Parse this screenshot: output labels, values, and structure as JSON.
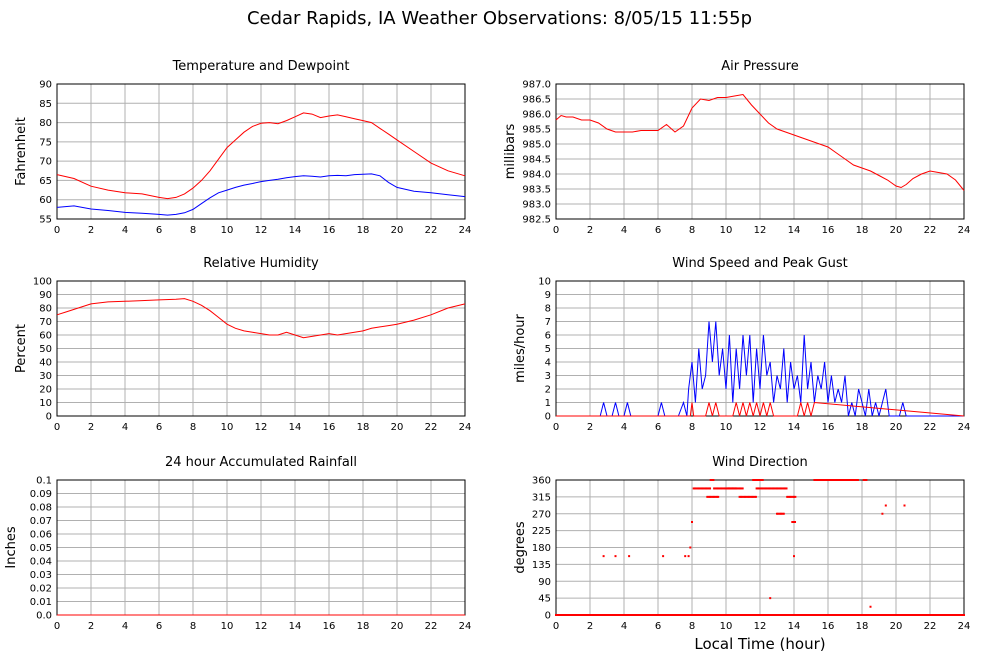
{
  "title": "Cedar Rapids, IA Weather Observations: 8/05/15 11:55p",
  "x_axis_label": "Local Time (hour)",
  "colors": {
    "red": "#ff0000",
    "blue": "#0000ff",
    "grid": "#b0b0b0",
    "zero": "#00b000"
  },
  "chart_data": [
    {
      "id": "temp",
      "type": "line",
      "title": "Temperature and Dewpoint",
      "ylabel": "Fahrenheit",
      "xlim": [
        0,
        24
      ],
      "ylim": [
        55,
        90
      ],
      "xticks": [
        0,
        2,
        4,
        6,
        8,
        10,
        12,
        14,
        16,
        18,
        20,
        22,
        24
      ],
      "yticks": [
        "55",
        "60",
        "65",
        "70",
        "75",
        "80",
        "85",
        "90"
      ],
      "series": [
        {
          "color": "#ff0000",
          "x": [
            0,
            1,
            2,
            3,
            4,
            5,
            6,
            6.5,
            7,
            7.5,
            8,
            8.5,
            9,
            9.5,
            10,
            10.5,
            11,
            11.5,
            12,
            12.5,
            13,
            13.5,
            14,
            14.5,
            15,
            15.5,
            16,
            16.5,
            17,
            17.5,
            18,
            18.5,
            19,
            19.5,
            20,
            21,
            22,
            23,
            24
          ],
          "y": [
            66.5,
            65.5,
            63.5,
            62.5,
            61.8,
            61.5,
            60.6,
            60.3,
            60.6,
            61.5,
            63,
            65,
            67.5,
            70.5,
            73.5,
            75.5,
            77.5,
            79,
            79.8,
            80,
            79.7,
            80.5,
            81.5,
            82.5,
            82.2,
            81.3,
            81.7,
            82,
            81.5,
            81,
            80.5,
            80,
            78.5,
            77,
            75.5,
            72.5,
            69.5,
            67.5,
            66.2
          ]
        },
        {
          "color": "#0000ff",
          "x": [
            0,
            1,
            2,
            3,
            4,
            5,
            6,
            6.5,
            7,
            7.5,
            8,
            8.5,
            9,
            9.5,
            10,
            10.5,
            11,
            11.5,
            12,
            12.5,
            13,
            13.5,
            14,
            14.5,
            15,
            15.5,
            16,
            16.5,
            17,
            17.5,
            18,
            18.5,
            19,
            19.5,
            20,
            21,
            22,
            23,
            24
          ],
          "y": [
            58,
            58.4,
            57.6,
            57.2,
            56.7,
            56.5,
            56.2,
            56,
            56.2,
            56.6,
            57.5,
            59,
            60.5,
            61.8,
            62.5,
            63.2,
            63.8,
            64.2,
            64.7,
            65,
            65.3,
            65.7,
            66,
            66.2,
            66.1,
            65.9,
            66.2,
            66.3,
            66.2,
            66.5,
            66.6,
            66.7,
            66.2,
            64.5,
            63.2,
            62.2,
            61.8,
            61.3,
            60.8
          ]
        }
      ]
    },
    {
      "id": "pressure",
      "type": "line",
      "title": "Air Pressure",
      "ylabel": "millibars",
      "xlim": [
        0,
        24
      ],
      "ylim": [
        982.5,
        987.0
      ],
      "xticks": [
        0,
        2,
        4,
        6,
        8,
        10,
        12,
        14,
        16,
        18,
        20,
        22,
        24
      ],
      "yticks": [
        "982.5",
        "983.0",
        "983.5",
        "984.0",
        "984.5",
        "985.0",
        "985.5",
        "986.0",
        "986.5",
        "987.0"
      ],
      "series": [
        {
          "color": "#ff0000",
          "x": [
            0,
            0.3,
            0.6,
            1,
            1.5,
            2,
            2.5,
            3,
            3.5,
            4,
            4.5,
            5,
            5.5,
            6,
            6.5,
            7,
            7.5,
            8,
            8.5,
            9,
            9.5,
            10,
            10.5,
            11,
            11.5,
            12,
            12.5,
            13,
            13.5,
            14,
            14.5,
            15,
            15.5,
            16,
            16.5,
            17,
            17.5,
            18,
            18.5,
            19,
            19.5,
            20,
            20.3,
            20.6,
            21,
            21.5,
            22,
            22.5,
            23,
            23.5,
            24
          ],
          "y": [
            985.8,
            985.95,
            985.9,
            985.9,
            985.8,
            985.8,
            985.7,
            985.5,
            985.4,
            985.4,
            985.4,
            985.45,
            985.45,
            985.45,
            985.65,
            985.4,
            985.6,
            986.2,
            986.5,
            986.45,
            986.55,
            986.55,
            986.6,
            986.65,
            986.3,
            986.0,
            985.7,
            985.5,
            985.4,
            985.3,
            985.2,
            985.1,
            985.0,
            984.9,
            984.7,
            984.5,
            984.3,
            984.2,
            984.1,
            983.95,
            983.8,
            983.6,
            983.55,
            983.65,
            983.85,
            984.0,
            984.1,
            984.05,
            984.0,
            983.8,
            983.45
          ]
        }
      ]
    },
    {
      "id": "humidity",
      "type": "line",
      "title": "Relative Humidity",
      "ylabel": "Percent",
      "xlim": [
        0,
        24
      ],
      "ylim": [
        0,
        100
      ],
      "xticks": [
        0,
        2,
        4,
        6,
        8,
        10,
        12,
        14,
        16,
        18,
        20,
        22,
        24
      ],
      "yticks": [
        "0",
        "10",
        "20",
        "30",
        "40",
        "50",
        "60",
        "70",
        "80",
        "90",
        "100"
      ],
      "series": [
        {
          "color": "#ff0000",
          "x": [
            0,
            0.5,
            1,
            1.5,
            2,
            3,
            4,
            5,
            6,
            7,
            7.5,
            8,
            8.5,
            9,
            9.5,
            10,
            10.5,
            11,
            11.5,
            12,
            12.5,
            13,
            13.5,
            14,
            14.5,
            15,
            15.5,
            16,
            16.5,
            17,
            17.5,
            18,
            18.5,
            19,
            19.5,
            20,
            21,
            22,
            23,
            24
          ],
          "y": [
            75,
            77,
            79,
            81,
            83,
            84.5,
            85,
            85.5,
            86,
            86.5,
            87,
            85,
            82,
            78,
            73,
            68,
            65,
            63,
            62,
            61,
            60,
            60,
            62,
            60,
            58,
            59,
            60,
            61,
            60,
            61,
            62,
            63,
            65,
            66,
            67,
            68,
            71,
            75,
            80,
            83
          ]
        }
      ]
    },
    {
      "id": "wind",
      "type": "line",
      "title": "Wind Speed and Peak Gust",
      "ylabel": "miles/hour",
      "xlim": [
        0,
        24
      ],
      "ylim": [
        0,
        10
      ],
      "xticks": [
        0,
        2,
        4,
        6,
        8,
        10,
        12,
        14,
        16,
        18,
        20,
        22,
        24
      ],
      "yticks": [
        "0",
        "1",
        "2",
        "3",
        "4",
        "5",
        "6",
        "7",
        "8",
        "9",
        "10"
      ],
      "series": [
        {
          "color": "#0000ff",
          "x": [
            0,
            2.6,
            2.8,
            3,
            3.3,
            3.5,
            3.7,
            4,
            4.2,
            4.4,
            6,
            6.2,
            6.4,
            7.2,
            7.5,
            7.7,
            7.8,
            8.0,
            8.2,
            8.4,
            8.6,
            8.8,
            9.0,
            9.2,
            9.4,
            9.6,
            9.8,
            10.0,
            10.2,
            10.4,
            10.6,
            10.8,
            11.0,
            11.2,
            11.4,
            11.6,
            11.8,
            12.0,
            12.2,
            12.4,
            12.6,
            12.8,
            13.0,
            13.2,
            13.4,
            13.6,
            13.8,
            14.0,
            14.2,
            14.4,
            14.6,
            14.8,
            15.0,
            15.2,
            15.4,
            15.6,
            15.8,
            16.0,
            16.2,
            16.4,
            16.6,
            16.8,
            17.0,
            17.2,
            17.4,
            17.6,
            17.8,
            18.0,
            18.2,
            18.4,
            18.6,
            18.8,
            19.0,
            19.2,
            19.4,
            19.6,
            20.2,
            20.4,
            20.6,
            24
          ],
          "y": [
            0,
            0,
            1,
            0,
            0,
            1,
            0,
            0,
            1,
            0,
            0,
            1,
            0,
            0,
            1,
            0,
            2,
            4,
            1,
            5,
            2,
            3,
            7,
            4,
            7,
            3,
            5,
            2,
            6,
            1,
            5,
            2,
            6,
            3,
            6,
            1,
            5,
            2,
            6,
            3,
            4,
            1,
            3,
            2,
            5,
            1,
            4,
            2,
            3,
            1,
            6,
            2,
            4,
            1,
            3,
            2,
            4,
            1,
            3,
            1,
            2,
            1,
            3,
            0,
            1,
            0,
            2,
            1,
            0,
            2,
            0,
            1,
            0,
            1,
            2,
            0,
            0,
            1,
            0,
            0
          ]
        },
        {
          "color": "#ff0000",
          "x": [
            0,
            7.9,
            8.0,
            8.1,
            8.8,
            9.0,
            9.2,
            9.4,
            9.6,
            9.8,
            10.4,
            10.6,
            10.8,
            11.0,
            11.2,
            11.4,
            11.6,
            11.8,
            12.0,
            12.2,
            12.4,
            12.6,
            12.8,
            14.2,
            14.4,
            14.6,
            14.8,
            15.0,
            15.2,
            24
          ],
          "y": [
            0,
            0,
            1,
            0,
            0,
            1,
            0,
            1,
            0,
            0,
            0,
            1,
            0,
            1,
            0,
            1,
            0,
            1,
            0,
            1,
            0,
            1,
            0,
            0,
            1,
            0,
            1,
            0,
            1,
            0
          ]
        }
      ]
    },
    {
      "id": "rain",
      "type": "line",
      "title": "24 hour Accumulated Rainfall",
      "ylabel": "Inches",
      "xlim": [
        0,
        24
      ],
      "ylim": [
        0,
        0.1
      ],
      "xticks": [
        0,
        2,
        4,
        6,
        8,
        10,
        12,
        14,
        16,
        18,
        20,
        22,
        24
      ],
      "yticks": [
        "0.0",
        "0.01",
        "0.02",
        "0.03",
        "0.04",
        "0.05",
        "0.06",
        "0.07",
        "0.08",
        "0.09",
        "0.1"
      ],
      "series": [
        {
          "color": "#ff0000",
          "x": [
            0,
            24
          ],
          "y": [
            0,
            0
          ]
        }
      ]
    },
    {
      "id": "winddir",
      "type": "scatter",
      "title": "Wind Direction",
      "ylabel": "degrees",
      "xlim": [
        0,
        24
      ],
      "ylim": [
        0,
        360
      ],
      "xticks": [
        0,
        2,
        4,
        6,
        8,
        10,
        12,
        14,
        16,
        18,
        20,
        22,
        24
      ],
      "yticks": [
        "0",
        "45",
        "90",
        "135",
        "180",
        "225",
        "270",
        "315",
        "360"
      ],
      "series": [
        {
          "color": "#ff0000",
          "x": [
            2.8,
            3.5,
            4.3,
            6.3,
            7.6,
            7.8,
            7.9,
            8.0,
            12.6,
            14.0,
            18.5,
            19.2,
            19.4,
            20.5
          ],
          "y": [
            157,
            157,
            157,
            157,
            157,
            157,
            180,
            248,
            45,
            157,
            22,
            270,
            292,
            292
          ]
        }
      ]
    }
  ]
}
